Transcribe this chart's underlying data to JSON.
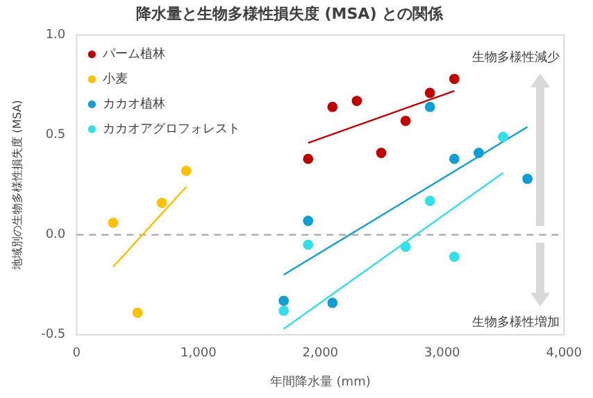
{
  "chart_data": {
    "type": "scatter",
    "title": "降水量と生物多様性損失度 (MSA) との関係",
    "xlabel": "年間降水量 (mm)",
    "ylabel": "地域別の生物多様性損失度 (MSA)",
    "xlim": [
      0,
      4000
    ],
    "xticks": [
      {
        "value": 0,
        "label": "0"
      },
      {
        "value": 1000,
        "label": "1,000"
      },
      {
        "value": 2000,
        "label": "2,000"
      },
      {
        "value": 3000,
        "label": "3,000"
      },
      {
        "value": 4000,
        "label": "4,000"
      }
    ],
    "ylim": [
      -0.5,
      1
    ],
    "yticks": [
      {
        "value": -0.5,
        "label": "-0.5"
      },
      {
        "value": 0,
        "label": "0.0"
      },
      {
        "value": 0.5,
        "label": "0.5"
      },
      {
        "value": 1,
        "label": "1.0"
      }
    ],
    "grid": false,
    "legend": "top left",
    "marker": "circle",
    "series": [
      {
        "name": "パーム植林",
        "color": "#c00000",
        "x": [
          1900,
          2100,
          2300,
          2500,
          2700,
          2900,
          3100
        ],
        "values": [
          0.38,
          0.64,
          0.67,
          0.41,
          0.57,
          0.71,
          0.78
        ]
      },
      {
        "name": "小麦",
        "color": "#ffc000",
        "x": [
          300,
          500,
          700,
          900
        ],
        "values": [
          0.06,
          -0.39,
          0.16,
          0.32
        ]
      },
      {
        "name": "カカオ植林",
        "color": "#0f9ed5",
        "x": [
          1700,
          1900,
          2100,
          2900,
          3100,
          3300,
          3700
        ],
        "values": [
          -0.33,
          0.07,
          -0.34,
          0.64,
          0.38,
          0.41,
          0.28
        ]
      },
      {
        "name": "カカオアグロフォレスト",
        "color": "#33dfe8",
        "x": [
          1700,
          1900,
          2700,
          2900,
          3100,
          3500
        ],
        "values": [
          -0.38,
          -0.05,
          -0.06,
          0.17,
          -0.11,
          0.49
        ]
      },
      {
        "type": "line",
        "marker": "none",
        "color": "#c00000",
        "x": [
          1900,
          3100
        ],
        "values": [
          0.46,
          0.72
        ]
      },
      {
        "type": "line",
        "marker": "none",
        "color": "#ffc000",
        "x": [
          300,
          900
        ],
        "values": [
          -0.16,
          0.24
        ]
      },
      {
        "type": "line",
        "marker": "none",
        "color": "#0f9ed5",
        "x": [
          1700,
          3700
        ],
        "values": [
          -0.2,
          0.54
        ]
      },
      {
        "type": "line",
        "marker": "none",
        "color": "#33dfe8",
        "x": [
          1700,
          3500
        ],
        "values": [
          -0.47,
          0.31
        ]
      }
    ],
    "ref_lines": [
      {
        "axis": "y",
        "value": 0,
        "color": "#a6a6a6",
        "line_style": "dashed"
      }
    ],
    "annotations": [
      "生物多様性減少",
      "生物多様性増加"
    ]
  }
}
